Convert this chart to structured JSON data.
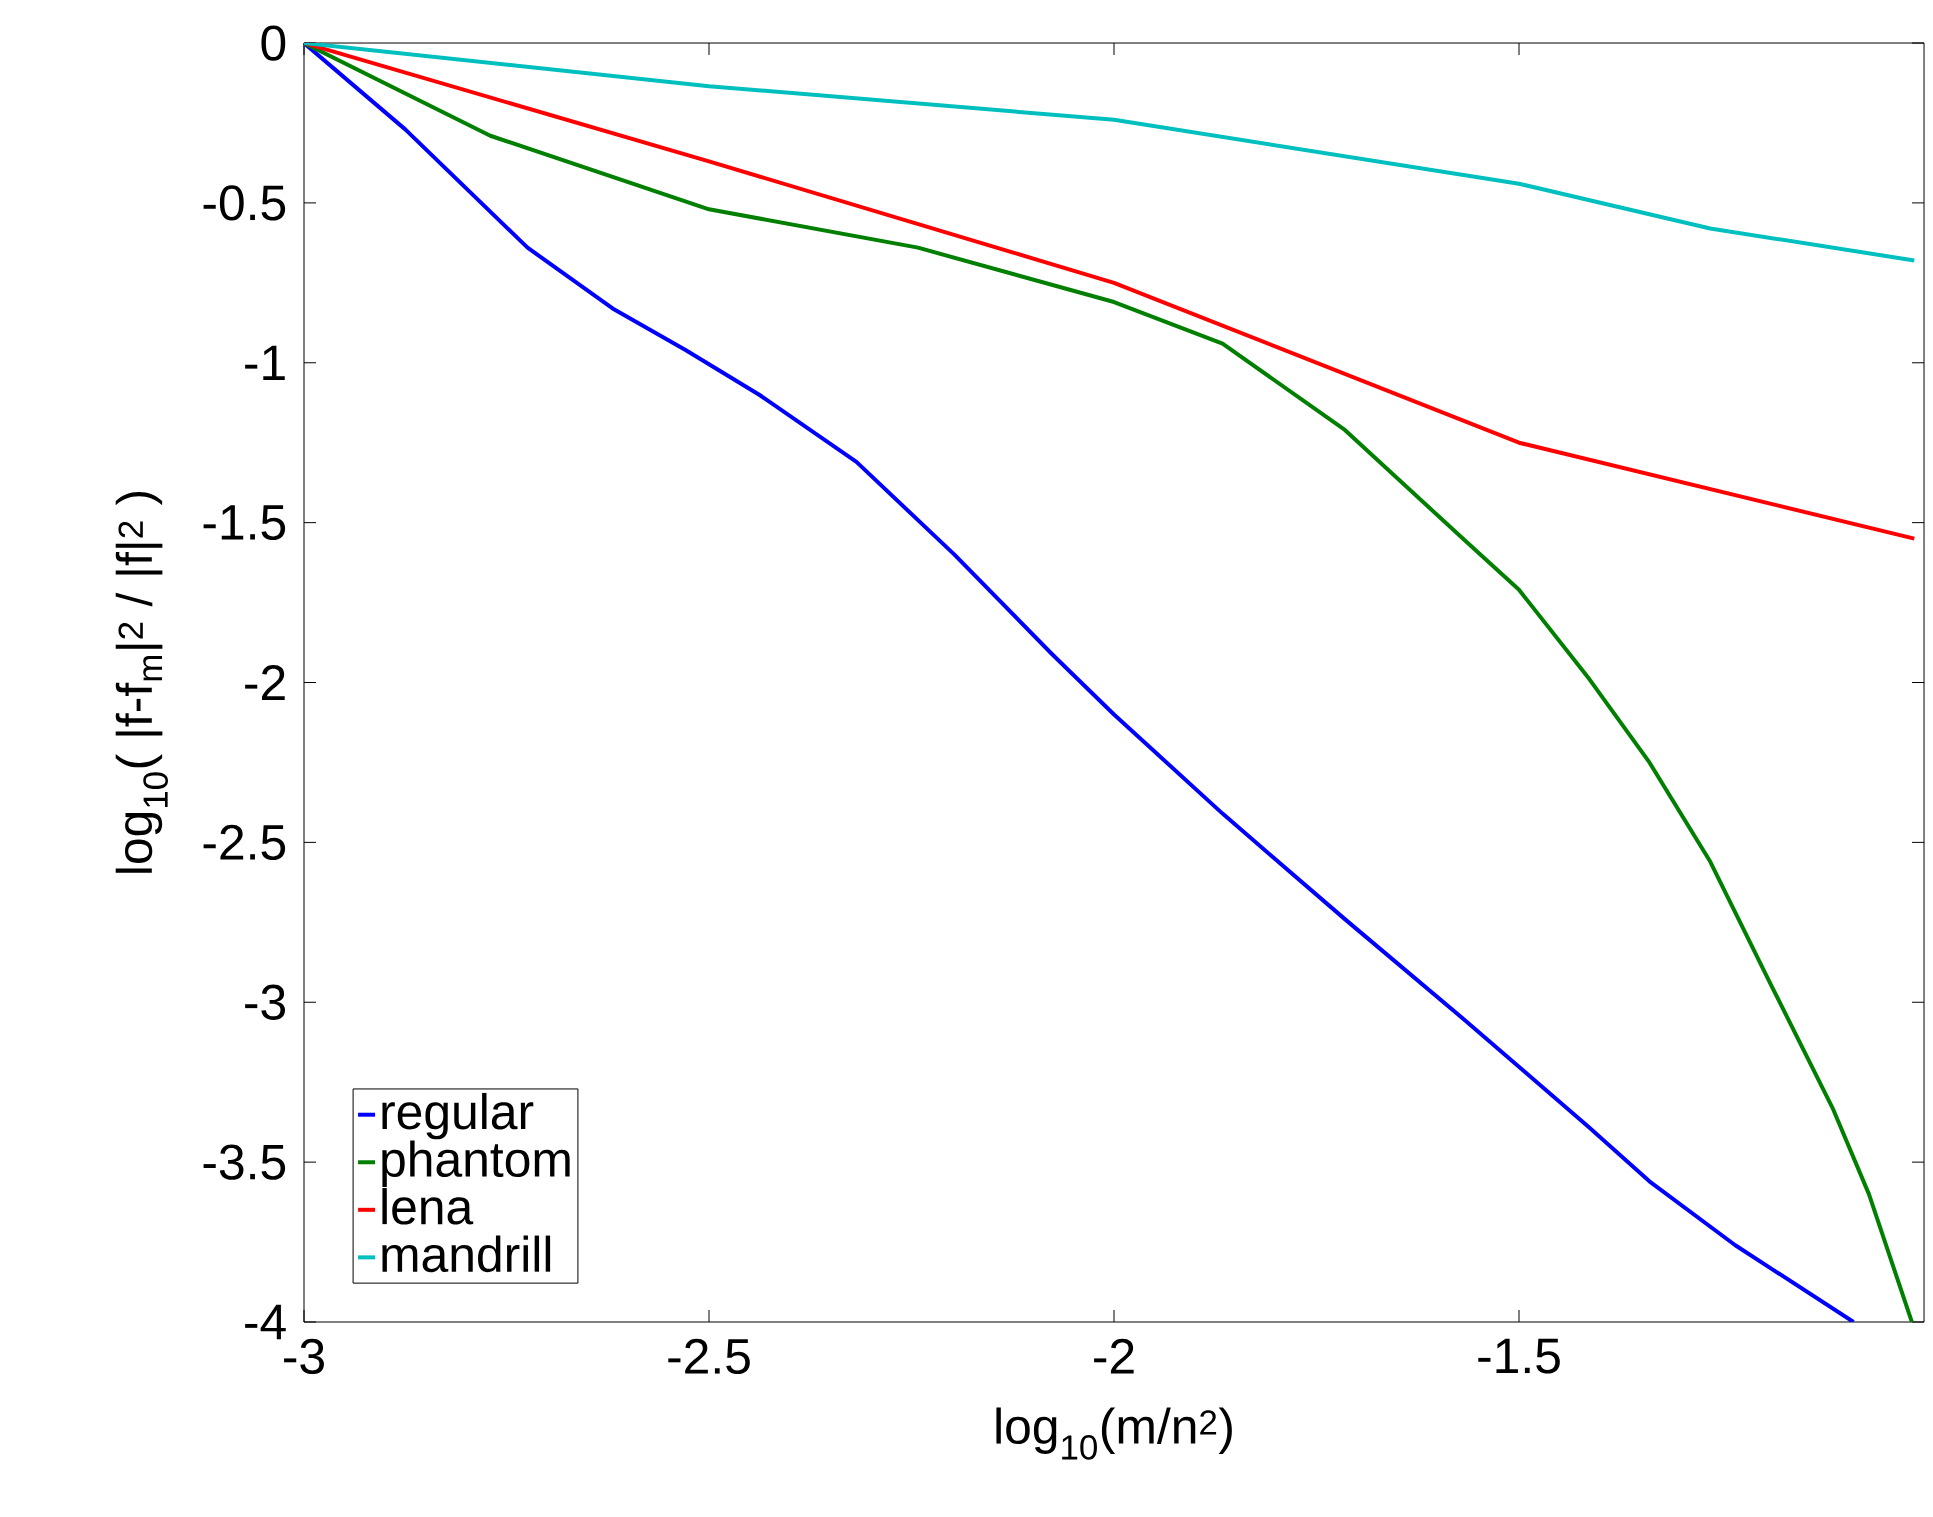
{
  "chart_data": {
    "type": "line",
    "xlabel": "log$_{10}$(m/n$^{2}$)",
    "ylabel": "log$_{10}$( |f-f$_{m}$|$^{2}$ / |f|$^{2}$ )",
    "xlim": [
      -3,
      -1
    ],
    "ylim": [
      -4,
      0
    ],
    "xticks": [
      -3,
      -2.5,
      -2,
      -1.5
    ],
    "yticks": [
      -4,
      -3.5,
      -3,
      -2.5,
      -2,
      -1.5,
      -1,
      -0.5,
      0
    ],
    "legend": "bottom left",
    "grid": false,
    "line_style": "solid",
    "marker": "none",
    "series": [
      {
        "name": "regular",
        "color": "#0000ff",
        "x": [
          -3,
          -2.875,
          -2.724,
          -2.619,
          -2.529,
          -2.438,
          -2.318,
          -2.197,
          -2.077,
          -2,
          -1.866,
          -1.715,
          -1.565,
          -1.414,
          -1.339,
          -1.233,
          -1.087
        ],
        "values": [
          0,
          -0.27,
          -0.64,
          -0.83,
          -0.96,
          -1.1,
          -1.31,
          -1.6,
          -1.91,
          -2.1,
          -2.41,
          -2.74,
          -3.06,
          -3.39,
          -3.56,
          -3.76,
          -4
        ]
      },
      {
        "name": "phantom",
        "color": "#007f00",
        "x": [
          -3,
          -2.77,
          -2.5,
          -2.242,
          -2,
          -1.866,
          -1.715,
          -1.565,
          -1.5,
          -1.413,
          -1.339,
          -1.264,
          -1.188,
          -1.113,
          -1.068,
          -1.015
        ],
        "values": [
          0,
          -0.29,
          -0.52,
          -0.64,
          -0.81,
          -0.94,
          -1.21,
          -1.56,
          -1.71,
          -1.99,
          -2.25,
          -2.56,
          -2.95,
          -3.33,
          -3.6,
          -4
        ]
      },
      {
        "name": "lena",
        "color": "#ff0000",
        "x": [
          -3,
          -2.5,
          -2,
          -1.5,
          -1.012
        ],
        "values": [
          0,
          -0.37,
          -0.75,
          -1.25,
          -1.55
        ]
      },
      {
        "name": "mandrill",
        "color": "#00bfbf",
        "x": [
          -3,
          -2.5,
          -2,
          -1.5,
          -1.264,
          -1.012
        ],
        "values": [
          0,
          -0.135,
          -0.24,
          -0.44,
          -0.58,
          -0.68
        ]
      }
    ]
  }
}
